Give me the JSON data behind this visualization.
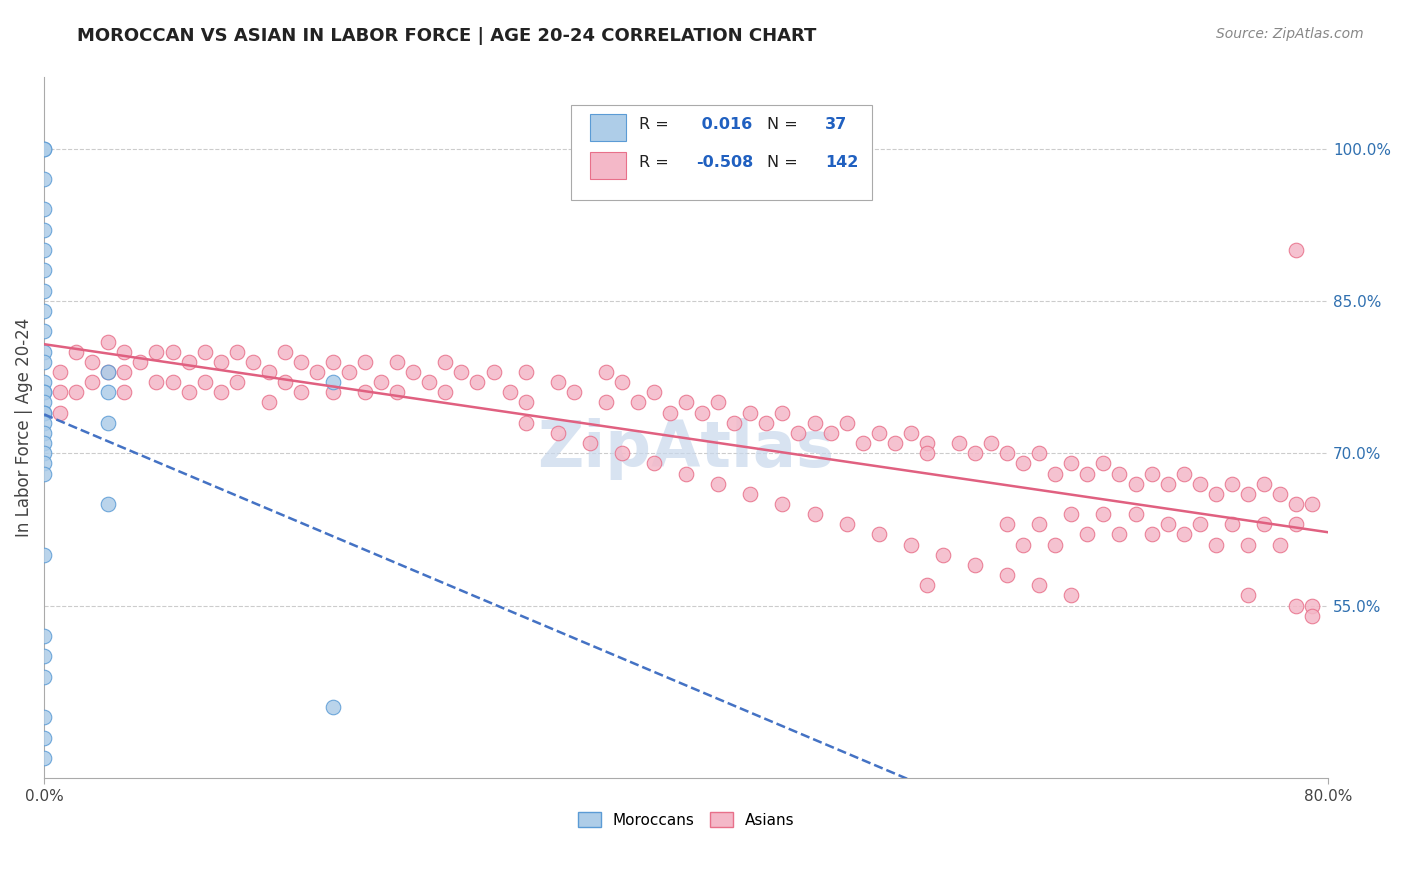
{
  "title": "MOROCCAN VS ASIAN IN LABOR FORCE | AGE 20-24 CORRELATION CHART",
  "source": "Source: ZipAtlas.com",
  "ylabel": "In Labor Force | Age 20-24",
  "xlim": [
    0.0,
    0.8
  ],
  "ylim": [
    0.38,
    1.07
  ],
  "ytick_labels": [
    "55.0%",
    "70.0%",
    "85.0%",
    "100.0%"
  ],
  "ytick_values": [
    0.55,
    0.7,
    0.85,
    1.0
  ],
  "xtick_labels": [
    "0.0%",
    "80.0%"
  ],
  "xtick_values": [
    0.0,
    0.8
  ],
  "moroccan_color": "#aecde8",
  "moroccan_edge_color": "#5b9bd5",
  "asian_color": "#f4b8c8",
  "asian_edge_color": "#e8708a",
  "moroccan_R": 0.016,
  "moroccan_N": 37,
  "asian_R": -0.508,
  "asian_N": 142,
  "moroccan_line_color": "#4472c4",
  "asian_line_color": "#e06080",
  "background_color": "#ffffff",
  "grid_color": "#cccccc",
  "legend_text_color": "#222222",
  "legend_value_color": "#2060c0",
  "watermark_color": "#c8d8ec",
  "moroccan_scatter_x": [
    0.0,
    0.0,
    0.0,
    0.0,
    0.0,
    0.0,
    0.0,
    0.0,
    0.0,
    0.0,
    0.0,
    0.0,
    0.0,
    0.0,
    0.0,
    0.0,
    0.0,
    0.0,
    0.0,
    0.0,
    0.0,
    0.0,
    0.0,
    0.0,
    0.0,
    0.0,
    0.0,
    0.0,
    0.0,
    0.0,
    0.0,
    0.04,
    0.04,
    0.04,
    0.04,
    0.18,
    0.18
  ],
  "moroccan_scatter_y": [
    1.0,
    1.0,
    0.97,
    0.94,
    0.92,
    0.9,
    0.88,
    0.86,
    0.84,
    0.82,
    0.8,
    0.79,
    0.77,
    0.76,
    0.76,
    0.75,
    0.74,
    0.74,
    0.73,
    0.72,
    0.71,
    0.7,
    0.69,
    0.68,
    0.6,
    0.52,
    0.5,
    0.48,
    0.44,
    0.42,
    0.4,
    0.78,
    0.76,
    0.73,
    0.65,
    0.77,
    0.45
  ],
  "asian_scatter_x": [
    0.01,
    0.01,
    0.01,
    0.02,
    0.02,
    0.03,
    0.03,
    0.04,
    0.04,
    0.05,
    0.05,
    0.05,
    0.06,
    0.07,
    0.07,
    0.08,
    0.08,
    0.09,
    0.09,
    0.1,
    0.1,
    0.11,
    0.11,
    0.12,
    0.12,
    0.13,
    0.14,
    0.14,
    0.15,
    0.15,
    0.16,
    0.16,
    0.17,
    0.18,
    0.18,
    0.19,
    0.2,
    0.2,
    0.21,
    0.22,
    0.22,
    0.23,
    0.24,
    0.25,
    0.25,
    0.26,
    0.27,
    0.28,
    0.29,
    0.3,
    0.3,
    0.32,
    0.33,
    0.35,
    0.35,
    0.36,
    0.37,
    0.38,
    0.39,
    0.4,
    0.41,
    0.42,
    0.43,
    0.44,
    0.45,
    0.46,
    0.47,
    0.48,
    0.49,
    0.5,
    0.51,
    0.52,
    0.53,
    0.54,
    0.55,
    0.55,
    0.57,
    0.58,
    0.59,
    0.6,
    0.61,
    0.62,
    0.63,
    0.64,
    0.65,
    0.66,
    0.67,
    0.68,
    0.69,
    0.7,
    0.71,
    0.72,
    0.73,
    0.74,
    0.75,
    0.76,
    0.77,
    0.78,
    0.78,
    0.79,
    0.79,
    0.6,
    0.61,
    0.62,
    0.63,
    0.64,
    0.65,
    0.66,
    0.67,
    0.68,
    0.69,
    0.7,
    0.71,
    0.72,
    0.73,
    0.74,
    0.75,
    0.76,
    0.77,
    0.78,
    0.3,
    0.32,
    0.34,
    0.36,
    0.38,
    0.4,
    0.42,
    0.44,
    0.46,
    0.48,
    0.5,
    0.52,
    0.54,
    0.56,
    0.58,
    0.6,
    0.62,
    0.64,
    0.55,
    0.75,
    0.78,
    0.79
  ],
  "asian_scatter_y": [
    0.78,
    0.76,
    0.74,
    0.8,
    0.76,
    0.79,
    0.77,
    0.81,
    0.78,
    0.8,
    0.78,
    0.76,
    0.79,
    0.8,
    0.77,
    0.8,
    0.77,
    0.79,
    0.76,
    0.8,
    0.77,
    0.79,
    0.76,
    0.8,
    0.77,
    0.79,
    0.78,
    0.75,
    0.8,
    0.77,
    0.79,
    0.76,
    0.78,
    0.79,
    0.76,
    0.78,
    0.79,
    0.76,
    0.77,
    0.79,
    0.76,
    0.78,
    0.77,
    0.79,
    0.76,
    0.78,
    0.77,
    0.78,
    0.76,
    0.78,
    0.75,
    0.77,
    0.76,
    0.78,
    0.75,
    0.77,
    0.75,
    0.76,
    0.74,
    0.75,
    0.74,
    0.75,
    0.73,
    0.74,
    0.73,
    0.74,
    0.72,
    0.73,
    0.72,
    0.73,
    0.71,
    0.72,
    0.71,
    0.72,
    0.71,
    0.7,
    0.71,
    0.7,
    0.71,
    0.7,
    0.69,
    0.7,
    0.68,
    0.69,
    0.68,
    0.69,
    0.68,
    0.67,
    0.68,
    0.67,
    0.68,
    0.67,
    0.66,
    0.67,
    0.66,
    0.67,
    0.66,
    0.65,
    0.9,
    0.65,
    0.55,
    0.63,
    0.61,
    0.63,
    0.61,
    0.64,
    0.62,
    0.64,
    0.62,
    0.64,
    0.62,
    0.63,
    0.62,
    0.63,
    0.61,
    0.63,
    0.61,
    0.63,
    0.61,
    0.63,
    0.73,
    0.72,
    0.71,
    0.7,
    0.69,
    0.68,
    0.67,
    0.66,
    0.65,
    0.64,
    0.63,
    0.62,
    0.61,
    0.6,
    0.59,
    0.58,
    0.57,
    0.56,
    0.57,
    0.56,
    0.55,
    0.54
  ]
}
